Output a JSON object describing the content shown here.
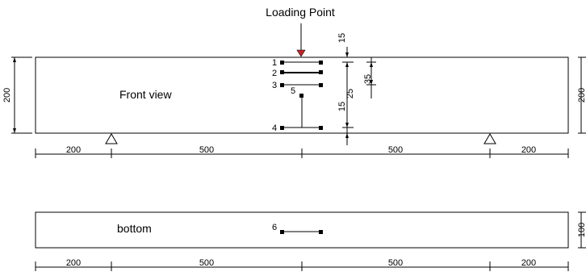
{
  "title": "Loading Point",
  "views": {
    "front": "Front view",
    "bottom": "bottom"
  },
  "colors": {
    "load_arrow": "#cc2222"
  },
  "span_dims": [
    "200",
    "500",
    "500",
    "200"
  ],
  "height_dims": {
    "front_left": "200",
    "front_right": "200",
    "bottom_right": "100"
  },
  "gauge_labels": [
    "1",
    "2",
    "3",
    "4",
    "5",
    "6"
  ],
  "vertical_dims": {
    "top": "15",
    "spacing": "35",
    "mid": "25",
    "lower": "15"
  },
  "icons": {
    "support": "triangle-support-icon",
    "load": "load-arrow-icon"
  }
}
